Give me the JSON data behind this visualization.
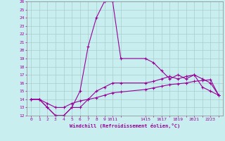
{
  "xlabel": "Windchill (Refroidissement éolien,°C)",
  "bg_color": "#c8eef0",
  "line_color": "#990099",
  "grid_color": "#aacccc",
  "ylim": [
    12,
    26
  ],
  "yticks": [
    12,
    13,
    14,
    15,
    16,
    17,
    18,
    19,
    20,
    21,
    22,
    23,
    24,
    25,
    26
  ],
  "xlim": [
    -0.5,
    23.5
  ],
  "xtick_positions": [
    0,
    1,
    2,
    3,
    4,
    5,
    6,
    7,
    8,
    9,
    10,
    11,
    14,
    15,
    16,
    17,
    18,
    19,
    20,
    21,
    22,
    23
  ],
  "xtick_labels": [
    "0",
    "1",
    "2",
    "3",
    "4",
    "5",
    "6",
    "7",
    "8",
    "9",
    "1011",
    "",
    "1415",
    "",
    "1617",
    "",
    "1819",
    "",
    "2021",
    "",
    "2223",
    ""
  ],
  "line1_x": [
    0,
    1,
    2,
    3,
    4,
    5,
    6,
    7,
    8,
    9,
    10,
    11,
    14,
    15,
    16,
    17,
    18,
    19,
    20,
    21,
    22,
    23
  ],
  "line1_y": [
    14,
    14,
    13,
    12,
    12,
    13,
    15,
    20.5,
    24,
    26,
    26,
    19,
    19,
    18.5,
    17.5,
    16.5,
    17,
    16.5,
    17,
    15.5,
    15,
    14.5
  ],
  "line2_x": [
    0,
    1,
    2,
    3,
    4,
    5,
    6,
    7,
    8,
    9,
    10,
    11,
    14,
    15,
    16,
    17,
    18,
    19,
    20,
    21,
    22,
    23
  ],
  "line2_y": [
    14,
    14,
    13,
    12,
    12,
    13,
    13,
    14,
    15,
    15.5,
    16,
    16,
    16,
    16.2,
    16.5,
    16.8,
    16.5,
    16.8,
    17,
    16.5,
    16,
    14.5
  ],
  "line3_x": [
    0,
    1,
    2,
    3,
    4,
    5,
    6,
    7,
    8,
    9,
    10,
    11,
    14,
    15,
    16,
    17,
    18,
    19,
    20,
    21,
    22,
    23
  ],
  "line3_y": [
    14,
    14,
    13.5,
    13,
    13,
    13.5,
    13.8,
    14,
    14.2,
    14.5,
    14.8,
    14.9,
    15.2,
    15.4,
    15.6,
    15.8,
    15.9,
    16,
    16.2,
    16.3,
    16.4,
    14.5
  ]
}
